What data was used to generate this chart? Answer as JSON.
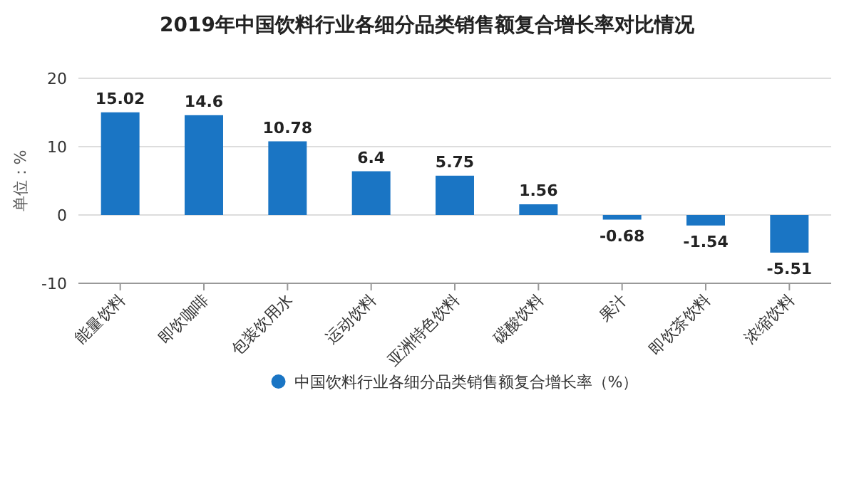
{
  "chart_data": {
    "type": "bar",
    "title": "2019年中国饮料行业各细分品类销售额复合增长率对比情况",
    "ylabel": "单位：%",
    "categories": [
      "能量饮料",
      "即饮咖啡",
      "包装饮用水",
      "运动饮料",
      "亚洲特色饮料",
      "碳酸饮料",
      "果汁",
      "即饮茶饮料",
      "浓缩饮料"
    ],
    "series": [
      {
        "name": "中国饮料行业各细分品类销售额复合增长率（%）",
        "color": "#1a75c4",
        "values": [
          15.02,
          14.6,
          10.78,
          6.4,
          5.75,
          1.56,
          -0.68,
          -1.54,
          -5.51
        ]
      }
    ],
    "ylim": [
      -10,
      20
    ],
    "yticks": [
      -10,
      0,
      10,
      20
    ],
    "grid": "y",
    "legend": "bottom",
    "data_labels": true
  }
}
